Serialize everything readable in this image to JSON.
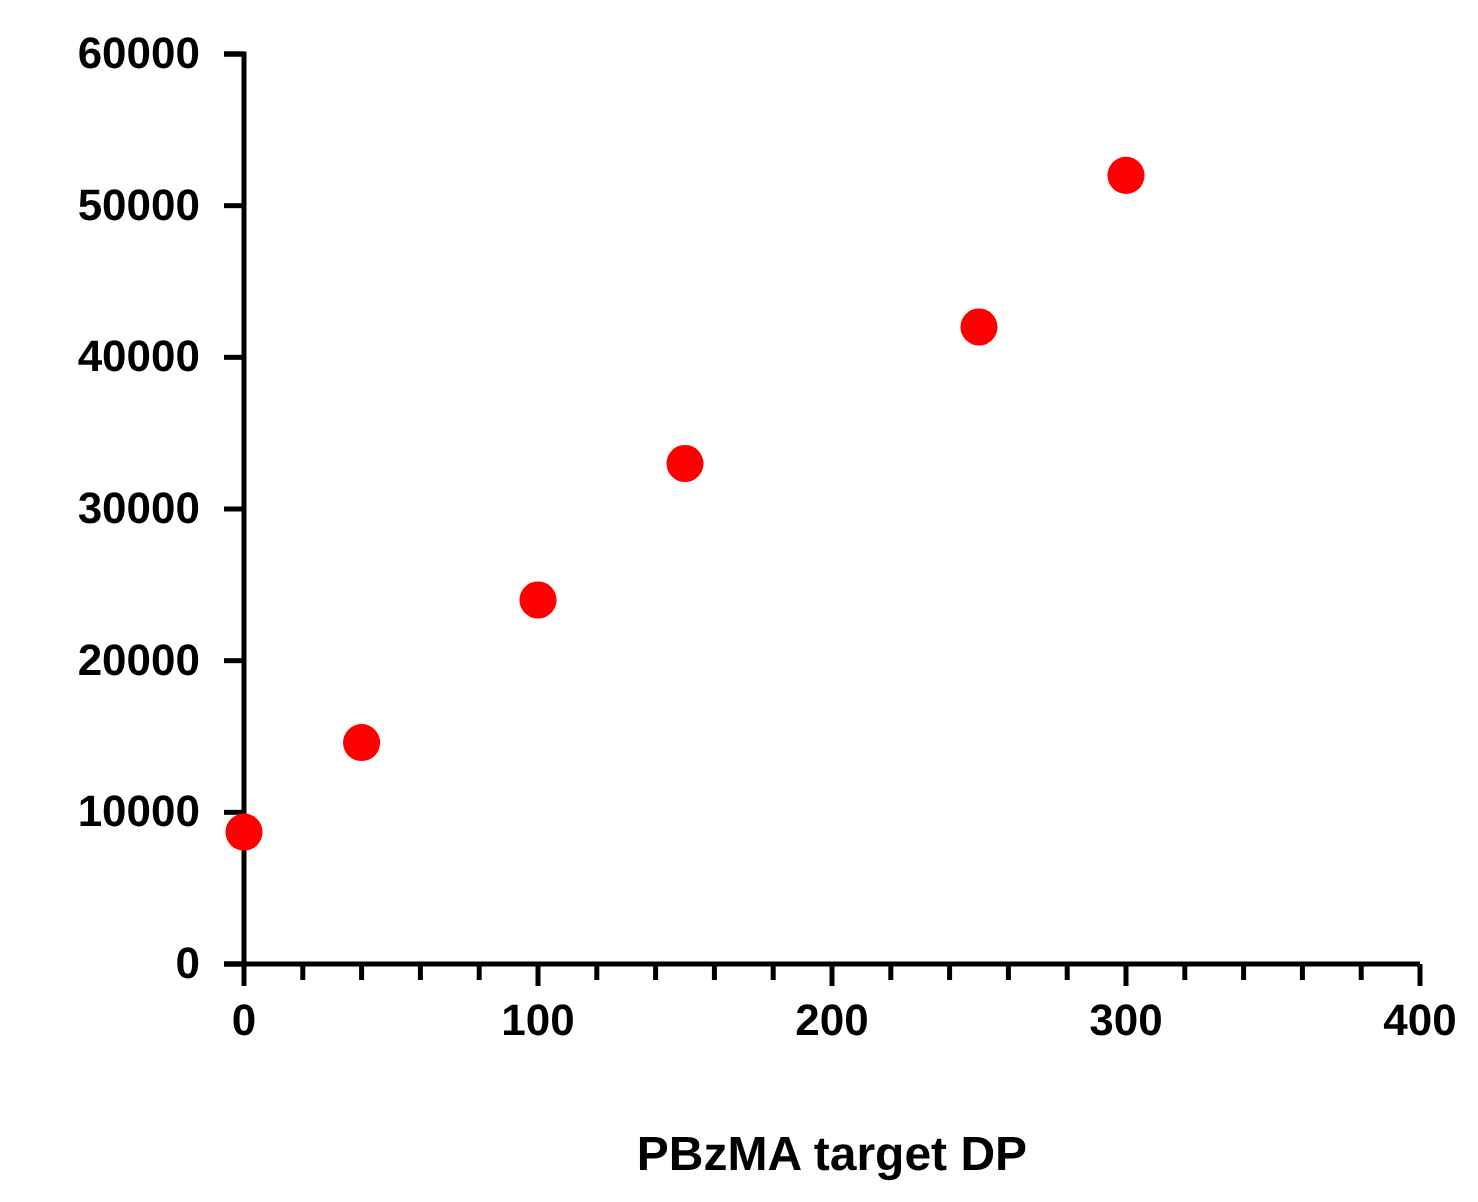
{
  "chart_data": {
    "type": "scatter",
    "xlabel": "PBzMA target DP",
    "x": [
      0,
      40,
      100,
      150,
      250,
      300
    ],
    "series": [
      {
        "color": "#ff0000",
        "values": [
          8700,
          14600,
          24000,
          33000,
          42000,
          52000
        ]
      }
    ],
    "xlim": [
      0,
      400
    ],
    "xticks": [
      0,
      {
        "value": 20,
        "label": null
      },
      {
        "value": 40,
        "label": null
      },
      {
        "value": 60,
        "label": null
      },
      {
        "value": 80,
        "label": null
      },
      100,
      {
        "value": 120,
        "label": null
      },
      {
        "value": 140,
        "label": null
      },
      {
        "value": 160,
        "label": null
      },
      {
        "value": 180,
        "label": null
      },
      200,
      {
        "value": 220,
        "label": null
      },
      {
        "value": 240,
        "label": null
      },
      {
        "value": 260,
        "label": null
      },
      {
        "value": 280,
        "label": null
      },
      300,
      {
        "value": 320,
        "label": null
      },
      {
        "value": 340,
        "label": null
      },
      {
        "value": 360,
        "label": null
      },
      {
        "value": 380,
        "label": null
      },
      400
    ],
    "ylim": [
      0,
      60000
    ],
    "yticks": [
      0,
      10000,
      20000,
      30000,
      40000,
      50000,
      60000
    ],
    "grid": false,
    "marker": "circle"
  }
}
